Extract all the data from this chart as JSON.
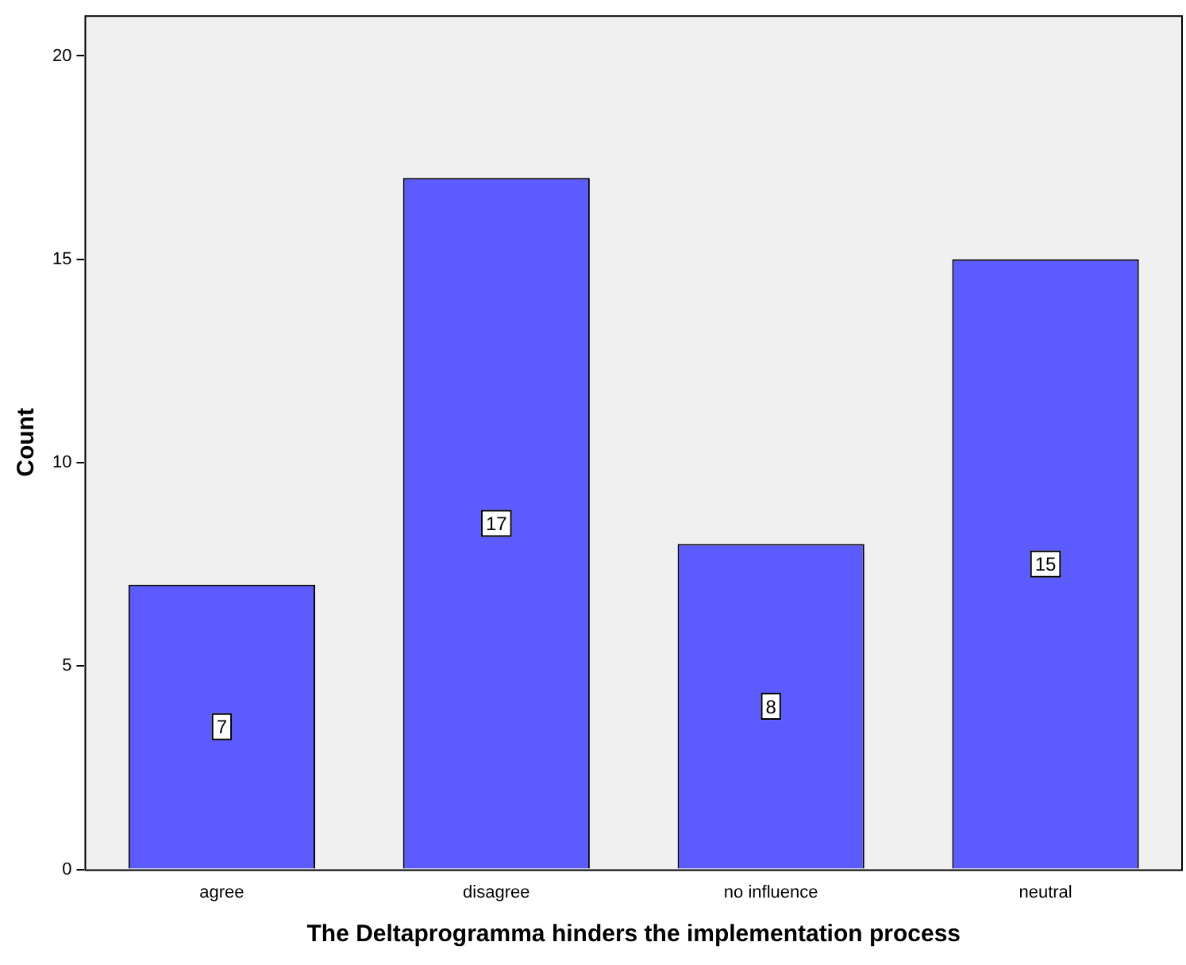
{
  "chart_data": {
    "type": "bar",
    "xlabel": "The Deltaprogramma hinders the implementation process",
    "ylabel": "Count",
    "categories": [
      "agree",
      "disagree",
      "no influence",
      "neutral"
    ],
    "values": [
      7,
      17,
      8,
      15
    ],
    "color": "#5b5bff",
    "ylim": [
      0,
      21
    ],
    "yticks": [
      0,
      5,
      10,
      15,
      20
    ],
    "grid": false,
    "legend": false,
    "data_labels": true
  }
}
